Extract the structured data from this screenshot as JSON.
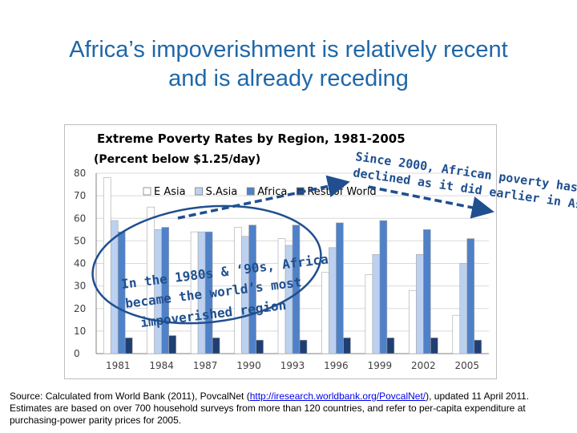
{
  "slide": {
    "title_lines": [
      "Africa’s impoverishment is relatively recent",
      "and is already receding"
    ]
  },
  "chart_data": {
    "type": "bar",
    "title": "Extreme Poverty Rates by Region, 1981-2005",
    "subtitle": "(Percent below $1.25/day)",
    "categories": [
      "1981",
      "1984",
      "1987",
      "1990",
      "1993",
      "1996",
      "1999",
      "2002",
      "2005"
    ],
    "series": [
      {
        "name": "E Asia",
        "color": "#ffffff",
        "values": [
          78,
          65,
          54,
          56,
          51,
          36,
          35,
          28,
          17
        ]
      },
      {
        "name": "S.Asia",
        "color": "#bcd1f0",
        "values": [
          59,
          55,
          54,
          52,
          48,
          47,
          44,
          44,
          40
        ]
      },
      {
        "name": "Africa",
        "color": "#4f81c8",
        "values": [
          54,
          56,
          54,
          57,
          57,
          58,
          59,
          55,
          51
        ]
      },
      {
        "name": "Rest of World",
        "color": "#1f3f73",
        "values": [
          7,
          8,
          7,
          6,
          6,
          7,
          7,
          7,
          6
        ]
      }
    ],
    "ylim": [
      0,
      80
    ],
    "yticks": [
      "0",
      "10",
      "20",
      "30",
      "40",
      "50",
      "60",
      "70",
      "80"
    ],
    "legend_position": "top-right",
    "xlabel": "",
    "ylabel": ""
  },
  "annotations": {
    "left_lines": [
      "In the 1980s & ‘90s, Africa",
      "became the world’s most",
      "impoverished region"
    ],
    "right_lines": [
      "Since 2000, African poverty has",
      "declined as it did earlier in Asia"
    ],
    "color": "#1f4f8f"
  },
  "source": {
    "prefix": "Source:  Calculated from World Bank (2011), PovcalNet  (",
    "link": "http://iresearch.worldbank.org/PovcalNet/",
    "suffix": "), updated 11 April 2011.  Estimates are based on over 700 household surveys from more than 120 countries, and refer to per-capita expenditure at purchasing-power parity prices for 2005."
  }
}
